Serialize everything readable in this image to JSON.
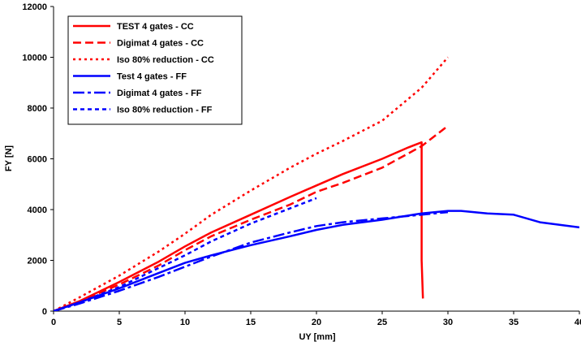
{
  "chart_data": {
    "type": "line",
    "title": "",
    "xlabel": "UY [mm]",
    "ylabel": "FY [N]",
    "xlim": [
      0,
      40
    ],
    "ylim": [
      0,
      12000
    ],
    "xticks": [
      "0",
      "5",
      "10",
      "15",
      "20",
      "25",
      "30",
      "35",
      "40"
    ],
    "yticks": [
      "0",
      "2000",
      "4000",
      "6000",
      "8000",
      "10000",
      "12000"
    ],
    "grid": false,
    "legend_position": "top-left",
    "series": [
      {
        "name": "TEST 4 gates - CC",
        "color": "#ff0000",
        "dash": "solid",
        "x": [
          0,
          2,
          5,
          8,
          10,
          12,
          15,
          18,
          20,
          22,
          25,
          27,
          28,
          28,
          28.1
        ],
        "y": [
          0,
          400,
          1150,
          1950,
          2550,
          3100,
          3800,
          4500,
          4950,
          5400,
          6000,
          6450,
          6650,
          2000,
          500
        ]
      },
      {
        "name": "Digimat 4 gates - CC",
        "color": "#ff0000",
        "dash": "long-dash",
        "x": [
          0,
          2,
          5,
          8,
          10,
          12,
          15,
          18,
          20,
          22,
          25,
          28,
          30
        ],
        "y": [
          0,
          380,
          1050,
          1800,
          2400,
          2950,
          3600,
          4200,
          4700,
          5050,
          5650,
          6500,
          7300
        ]
      },
      {
        "name": "Iso 80% reduction - CC",
        "color": "#ff0000",
        "dash": "dot",
        "x": [
          0,
          2,
          5,
          8,
          10,
          12,
          15,
          18,
          20,
          22,
          25,
          28,
          30
        ],
        "y": [
          0,
          550,
          1400,
          2350,
          3050,
          3800,
          4750,
          5650,
          6200,
          6700,
          7500,
          8800,
          10000
        ]
      },
      {
        "name": "Test 4 gates - FF",
        "color": "#0000ff",
        "dash": "solid",
        "x": [
          0,
          2,
          5,
          8,
          10,
          12,
          15,
          18,
          20,
          22,
          25,
          28,
          30,
          31,
          33,
          35,
          37,
          40
        ],
        "y": [
          0,
          350,
          900,
          1500,
          1900,
          2200,
          2600,
          2950,
          3200,
          3400,
          3600,
          3850,
          3950,
          3950,
          3850,
          3800,
          3500,
          3300
        ]
      },
      {
        "name": "Digimat 4 gates - FF",
        "color": "#0000ff",
        "dash": "dash-dot",
        "x": [
          0,
          2,
          5,
          8,
          10,
          12,
          15,
          18,
          20,
          22,
          25,
          28,
          30
        ],
        "y": [
          0,
          300,
          800,
          1350,
          1750,
          2150,
          2700,
          3100,
          3350,
          3500,
          3650,
          3800,
          3900
        ]
      },
      {
        "name": "Iso 80% reduction - FF",
        "color": "#0000ff",
        "dash": "short-dash",
        "x": [
          0,
          2,
          5,
          8,
          10,
          12,
          15,
          18,
          20
        ],
        "y": [
          0,
          350,
          950,
          1700,
          2200,
          2750,
          3450,
          4050,
          4450
        ]
      }
    ]
  }
}
